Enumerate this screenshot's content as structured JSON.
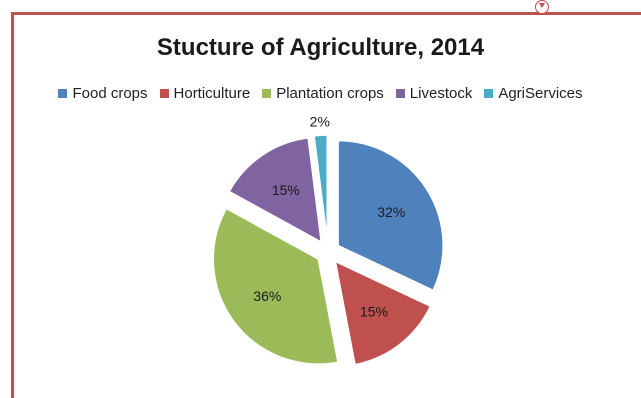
{
  "chart_data": {
    "type": "pie",
    "title": "Stucture of Agriculture, 2014",
    "categories": [
      "Food crops",
      "Horticulture",
      "Plantation crops",
      "Livestock",
      "AgriServices"
    ],
    "values": [
      32,
      15,
      36,
      15,
      2
    ],
    "value_labels": [
      "32%",
      "15%",
      "36%",
      "15%",
      "2%"
    ],
    "colors": [
      "#4F81BD",
      "#C0504D",
      "#9BBB59",
      "#8064A2",
      "#4BACC6"
    ],
    "exploded": true,
    "legend_position": "top"
  },
  "frame": {
    "border_color": "#C0504D"
  },
  "icons": {
    "corner_marker": "chevron-down-circle-icon"
  }
}
